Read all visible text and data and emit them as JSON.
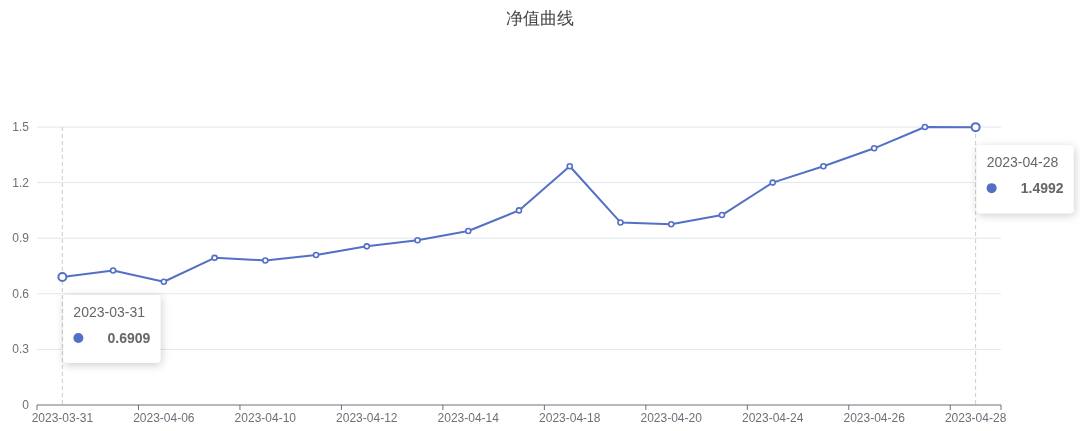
{
  "chart_data": {
    "type": "line",
    "title": "净值曲线",
    "categories": [
      "2023-03-31",
      null,
      "2023-04-06",
      null,
      "2023-04-10",
      null,
      "2023-04-12",
      null,
      "2023-04-14",
      null,
      "2023-04-18",
      null,
      "2023-04-20",
      null,
      "2023-04-24",
      null,
      "2023-04-26",
      null,
      "2023-04-28"
    ],
    "series": [
      {
        "color": "#5470c6",
        "values": [
          0.6909,
          0.726,
          0.665,
          0.794,
          0.78,
          0.809,
          0.856,
          0.889,
          0.939,
          1.05,
          1.288,
          0.985,
          0.975,
          1.025,
          1.2,
          1.288,
          1.385,
          1.5,
          1.4992
        ]
      }
    ],
    "ylim": [
      0,
      1.5
    ],
    "yticks": [
      0,
      0.3,
      0.6,
      0.9,
      1.2,
      1.5
    ],
    "grid": "y",
    "marker": "circle",
    "line_style": "solid",
    "ref_lines": [
      {
        "axis": "x",
        "value": "2023-03-31",
        "color": "#cccccc",
        "line_style": "dashed"
      },
      {
        "axis": "x",
        "value": "2023-04-28",
        "color": "#cccccc",
        "line_style": "dashed"
      }
    ],
    "annotations": [
      "2023-03-31",
      "0.6909",
      "2023-04-28",
      "1.4992"
    ]
  }
}
